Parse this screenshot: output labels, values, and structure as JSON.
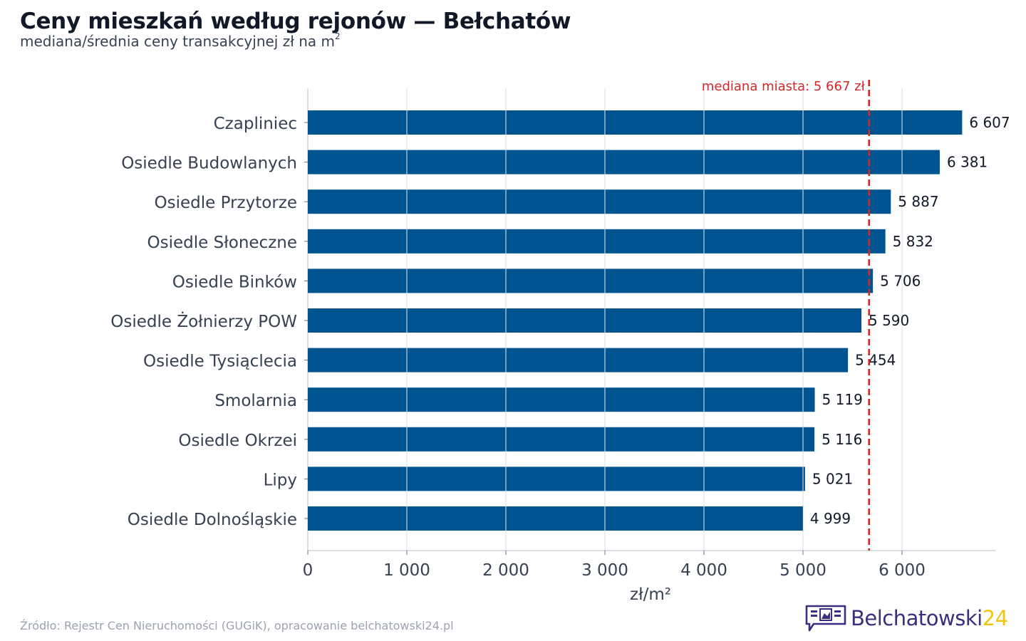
{
  "header": {
    "title": "Ceny mieszkań według rejonów — Bełchatów",
    "subtitle_text": "mediana/średnia ceny transakcyjnej zł na m",
    "subtitle_sup": "2"
  },
  "chart_data": {
    "type": "bar",
    "orientation": "horizontal",
    "categories": [
      "Czapliniec",
      "Osiedle Budowlanych",
      "Osiedle Przytorze",
      "Osiedle Słoneczne",
      "Osiedle Binków",
      "Osiedle Żołnierzy POW",
      "Osiedle Tysiąclecia",
      "Smolarnia",
      "Osiedle Okrzei",
      "Lipy",
      "Osiedle Dolnośląskie"
    ],
    "values": [
      6607,
      6381,
      5887,
      5832,
      5706,
      5590,
      5454,
      5119,
      5116,
      5021,
      4999
    ],
    "value_labels": [
      "6 607",
      "6 381",
      "5 887",
      "5 832",
      "5 706",
      "5 590",
      "5 454",
      "5 119",
      "5 116",
      "5 021",
      "4 999"
    ],
    "xlabel": "zł/m²",
    "ylabel": "",
    "xlim": [
      0,
      6950
    ],
    "xticks": [
      0,
      1000,
      2000,
      3000,
      4000,
      5000,
      6000
    ],
    "xtick_labels": [
      "0",
      "1 000",
      "2 000",
      "3 000",
      "4 000",
      "5 000",
      "6 000"
    ],
    "grid": "vertical",
    "reference_line": {
      "value": 5667,
      "label": "mediana miasta: 5 667 zł",
      "style": "dashed"
    },
    "colors": {
      "bar": "#00548f",
      "reference": "#d62728",
      "grid": "#e5e7eb",
      "axis": "#d1d5db"
    }
  },
  "footer": {
    "source": "Źródło: Rejestr Cen Nieruchomości (GUGiK), opracowanie belchatowski24.pl",
    "logo_name": "Belchatowski",
    "logo_number": "24",
    "logo_icon": "newspaper-speech-bubble-icon"
  }
}
